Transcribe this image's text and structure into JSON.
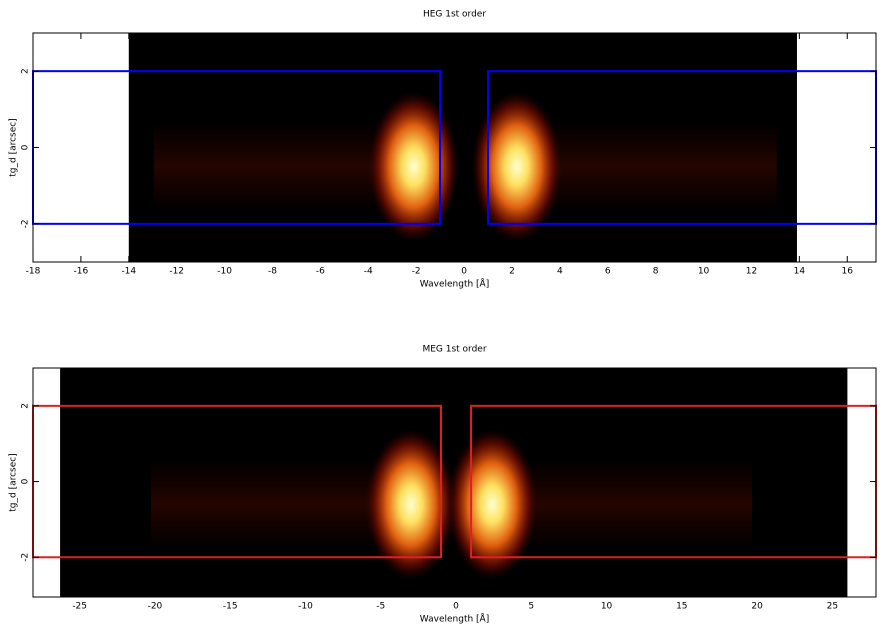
{
  "chart_data": [
    {
      "type": "heatmap",
      "title": "HEG 1st order",
      "xlabel": "Wavelength [Å]",
      "ylabel": "tg_d [arcsec]",
      "xlim": [
        -18,
        17.2
      ],
      "ylim": [
        -3,
        3
      ],
      "xticks": [
        -18,
        -16,
        -14,
        -12,
        -10,
        -8,
        -6,
        -4,
        -2,
        0,
        2,
        4,
        6,
        8,
        10,
        12,
        14,
        16
      ],
      "yticks": [
        -2,
        0,
        2
      ],
      "image_xlim": [
        -14,
        13.9
      ],
      "region_color": "#0000ff",
      "regions": [
        {
          "x": [
            -18,
            -1
          ],
          "y": [
            -2,
            2
          ]
        },
        {
          "x": [
            1,
            17.2
          ],
          "y": [
            -2,
            2
          ]
        }
      ],
      "hotspots": [
        {
          "x": -2.1,
          "y": -0.5
        },
        {
          "x": 2.2,
          "y": -0.5
        }
      ]
    },
    {
      "type": "heatmap",
      "title": "MEG 1st order",
      "xlabel": "Wavelength [Å]",
      "ylabel": "tg_d [arcsec]",
      "xlim": [
        -28.1,
        27.9
      ],
      "ylim": [
        -3.05,
        3
      ],
      "xticks": [
        -25,
        -20,
        -15,
        -10,
        -5,
        0,
        5,
        10,
        15,
        20,
        25
      ],
      "yticks": [
        -2,
        0,
        2
      ],
      "image_xlim": [
        -26.3,
        26
      ],
      "region_color": "#dd2222",
      "regions": [
        {
          "x": [
            -28.1,
            -1
          ],
          "y": [
            -2,
            2
          ]
        },
        {
          "x": [
            1,
            27.9
          ],
          "y": [
            -2,
            2
          ]
        }
      ],
      "hotspots": [
        {
          "x": -3,
          "y": -0.6
        },
        {
          "x": 2.4,
          "y": -0.6
        }
      ]
    }
  ]
}
